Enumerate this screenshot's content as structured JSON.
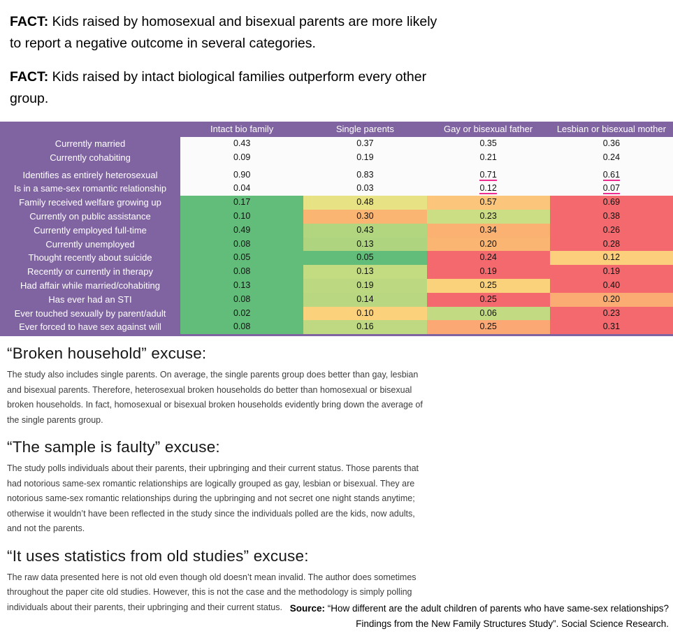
{
  "facts": [
    {
      "label": "FACT:",
      "text": " Kids raised by homosexual and bisexual parents are more likely to report a negative outcome in several categories."
    },
    {
      "label": "FACT:",
      "text": " Kids raised by intact biological families outperform every other group."
    }
  ],
  "table": {
    "colors": {
      "purple": "#8064A2",
      "underline_pink": "#EC2C8E",
      "green": "#62BD7A",
      "red": "#F3696D",
      "white_row": "#FCFBFC"
    },
    "columns": [
      "Intact bio family",
      "Single parents",
      "Gay or bisexual father",
      "Lesbian or bisexual mother"
    ],
    "rows": [
      {
        "label": "Currently married",
        "values": [
          "0.43",
          "0.37",
          "0.35",
          "0.36"
        ],
        "colors": [
          "#FCFBFC",
          "#FCFBFC",
          "#FCFBFC",
          "#FCFBFC"
        ],
        "underline": []
      },
      {
        "label": "Currently cohabiting",
        "values": [
          "0.09",
          "0.19",
          "0.21",
          "0.24"
        ],
        "colors": [
          "#FCFBFC",
          "#FCFBFC",
          "#FCFBFC",
          "#FCFBFC"
        ],
        "underline": [],
        "gap_after": true
      },
      {
        "label": "Identifies as entirely heterosexual",
        "values": [
          "0.90",
          "0.83",
          "0.71",
          "0.61"
        ],
        "colors": [
          "#FCFBFC",
          "#FCFBFC",
          "#FCFBFC",
          "#FCFBFC"
        ],
        "underline": [
          2,
          3
        ]
      },
      {
        "label": "Is in a same-sex romantic relationship",
        "values": [
          "0.04",
          "0.03",
          "0.12",
          "0.07"
        ],
        "colors": [
          "#FCFBFC",
          "#FCFBFC",
          "#FCFBFC",
          "#FCFBFC"
        ],
        "underline": [
          2,
          3
        ]
      },
      {
        "label": "Family received welfare growing up",
        "values": [
          "0.17",
          "0.48",
          "0.57",
          "0.69"
        ],
        "colors": [
          "#62BD7A",
          "#E7E384",
          "#FBC67C",
          "#F3696D"
        ],
        "underline": []
      },
      {
        "label": "Currently on public assistance",
        "values": [
          "0.10",
          "0.30",
          "0.23",
          "0.38"
        ],
        "colors": [
          "#62BD7A",
          "#FBB573",
          "#CCDE84",
          "#F3696D"
        ],
        "underline": []
      },
      {
        "label": "Currently employed full-time",
        "values": [
          "0.49",
          "0.43",
          "0.34",
          "0.26"
        ],
        "colors": [
          "#62BD7A",
          "#B2D580",
          "#FBB171",
          "#F3696D"
        ],
        "underline": []
      },
      {
        "label": "Currently unemployed",
        "values": [
          "0.08",
          "0.13",
          "0.20",
          "0.28"
        ],
        "colors": [
          "#62BD7A",
          "#AFD47F",
          "#FBB573",
          "#F3696D"
        ],
        "underline": []
      },
      {
        "label": "Thought recently about suicide",
        "values": [
          "0.05",
          "0.05",
          "0.24",
          "0.12"
        ],
        "colors": [
          "#62BD7A",
          "#62BD7A",
          "#F3696D",
          "#FBCF7C"
        ],
        "underline": []
      },
      {
        "label": "Recently or currently in therapy",
        "values": [
          "0.08",
          "0.13",
          "0.19",
          "0.19"
        ],
        "colors": [
          "#62BD7A",
          "#C3DC82",
          "#F3696D",
          "#F3696D"
        ],
        "underline": []
      },
      {
        "label": "Had affair while married/cohabiting",
        "values": [
          "0.13",
          "0.19",
          "0.25",
          "0.40"
        ],
        "colors": [
          "#62BD7A",
          "#BCD981",
          "#FBD27C",
          "#F3696D"
        ],
        "underline": []
      },
      {
        "label": "Has ever had an STI",
        "values": [
          "0.08",
          "0.14",
          "0.25",
          "0.20"
        ],
        "colors": [
          "#62BD7A",
          "#B8D780",
          "#F3696D",
          "#FBAC73"
        ],
        "underline": []
      },
      {
        "label": "Ever touched sexually by parent/adult",
        "values": [
          "0.02",
          "0.10",
          "0.06",
          "0.23"
        ],
        "colors": [
          "#62BD7A",
          "#FBD17B",
          "#C2DB82",
          "#F3696D"
        ],
        "underline": []
      },
      {
        "label": "Ever forced to have sex against will",
        "values": [
          "0.08",
          "0.16",
          "0.25",
          "0.31"
        ],
        "colors": [
          "#62BD7A",
          "#BED982",
          "#FBA874",
          "#F3696D"
        ],
        "underline": []
      }
    ]
  },
  "sections": [
    {
      "heading": "“Broken household” excuse:",
      "body": "The study also includes single parents. On average, the single parents group does better than gay, lesbian and bisexual parents. Therefore, heterosexual broken households do better than homosexual or bisexual broken households. In fact, homosexual or bisexual broken households evidently bring down the average of the single parents group."
    },
    {
      "heading": "“The sample is faulty” excuse:",
      "body": "The study polls individuals about their parents, their upbringing and their current status. Those parents that had notorious same-sex romantic relationships are logically grouped as gay, lesbian or bisexual. They are notorious same-sex romantic relationships during the upbringing and not secret one night stands anytime; otherwise it wouldn’t have been reflected in the study since the individuals polled are the kids, now adults, and not the parents."
    },
    {
      "heading": "“It uses statistics from old studies” excuse:",
      "body": "The raw data presented here is not old even though old doesn’t mean invalid. The author does sometimes throughout the paper cite old studies. However, this is not the case and the methodology is simply polling individuals about their parents, their upbringing and their current status."
    }
  ],
  "source": {
    "label": "Source:",
    "line1": " “How different are the adult children of parents who have same-sex relationships?",
    "line2": "Findings from the New Family Structures Study”. Social Science Research."
  }
}
